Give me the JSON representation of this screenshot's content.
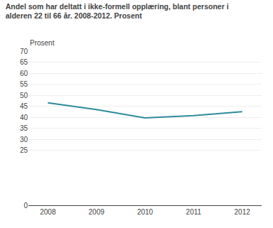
{
  "chart_data": {
    "type": "line",
    "title": "Andel som har deltatt i ikke-formell opplæring, blant personer i\nalderen 22 til 66 år. 2008-2012. Prosent",
    "ylabel": "Prosent",
    "x": [
      2008,
      2009,
      2010,
      2011,
      2012
    ],
    "values": [
      46.5,
      43.5,
      39.7,
      40.7,
      42.5
    ],
    "color": "#2e8b9a",
    "xlim": [
      2007.6,
      2012.4
    ],
    "xticks": [
      2008,
      2009,
      2010,
      2011,
      2012
    ],
    "ylim": [
      0,
      70
    ],
    "yticks": [
      0,
      25,
      30,
      35,
      40,
      45,
      50,
      55,
      60,
      65,
      70
    ],
    "grid": true
  }
}
